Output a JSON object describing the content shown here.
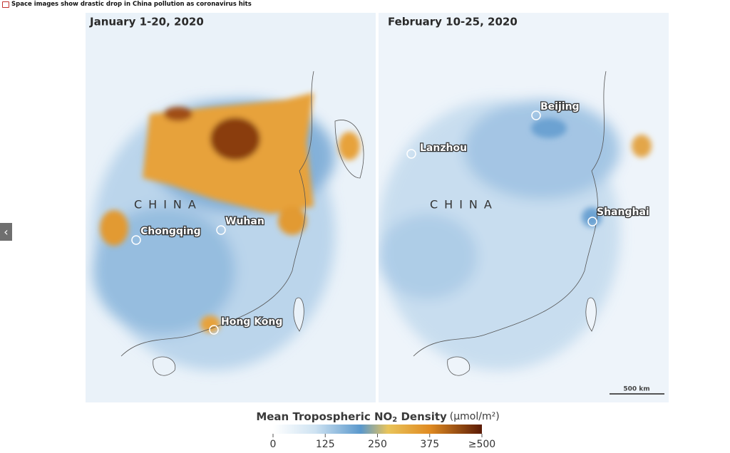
{
  "header": {
    "title": "Space images show drastic drop in China pollution as coronavirus hits"
  },
  "maps": [
    {
      "title": "January 1-20, 2020",
      "country": "CHINA",
      "cities": [
        "Chongqing",
        "Wuhan",
        "Hong Kong"
      ]
    },
    {
      "title": "February 10-25, 2020",
      "country": "CHINA",
      "cities": [
        "Beijing",
        "Lanzhou",
        "Shanghai"
      ],
      "scale_bar": "500 km"
    }
  ],
  "legend": {
    "title": "Mean Tropospheric NO",
    "subscript": "2",
    "title_rest": " Density",
    "unit": "(µmol/m²)",
    "lim": [
      0,
      500
    ],
    "ticks": [
      0,
      125,
      250,
      375,
      {
        "value": 500,
        "label": "≥500"
      }
    ]
  }
}
